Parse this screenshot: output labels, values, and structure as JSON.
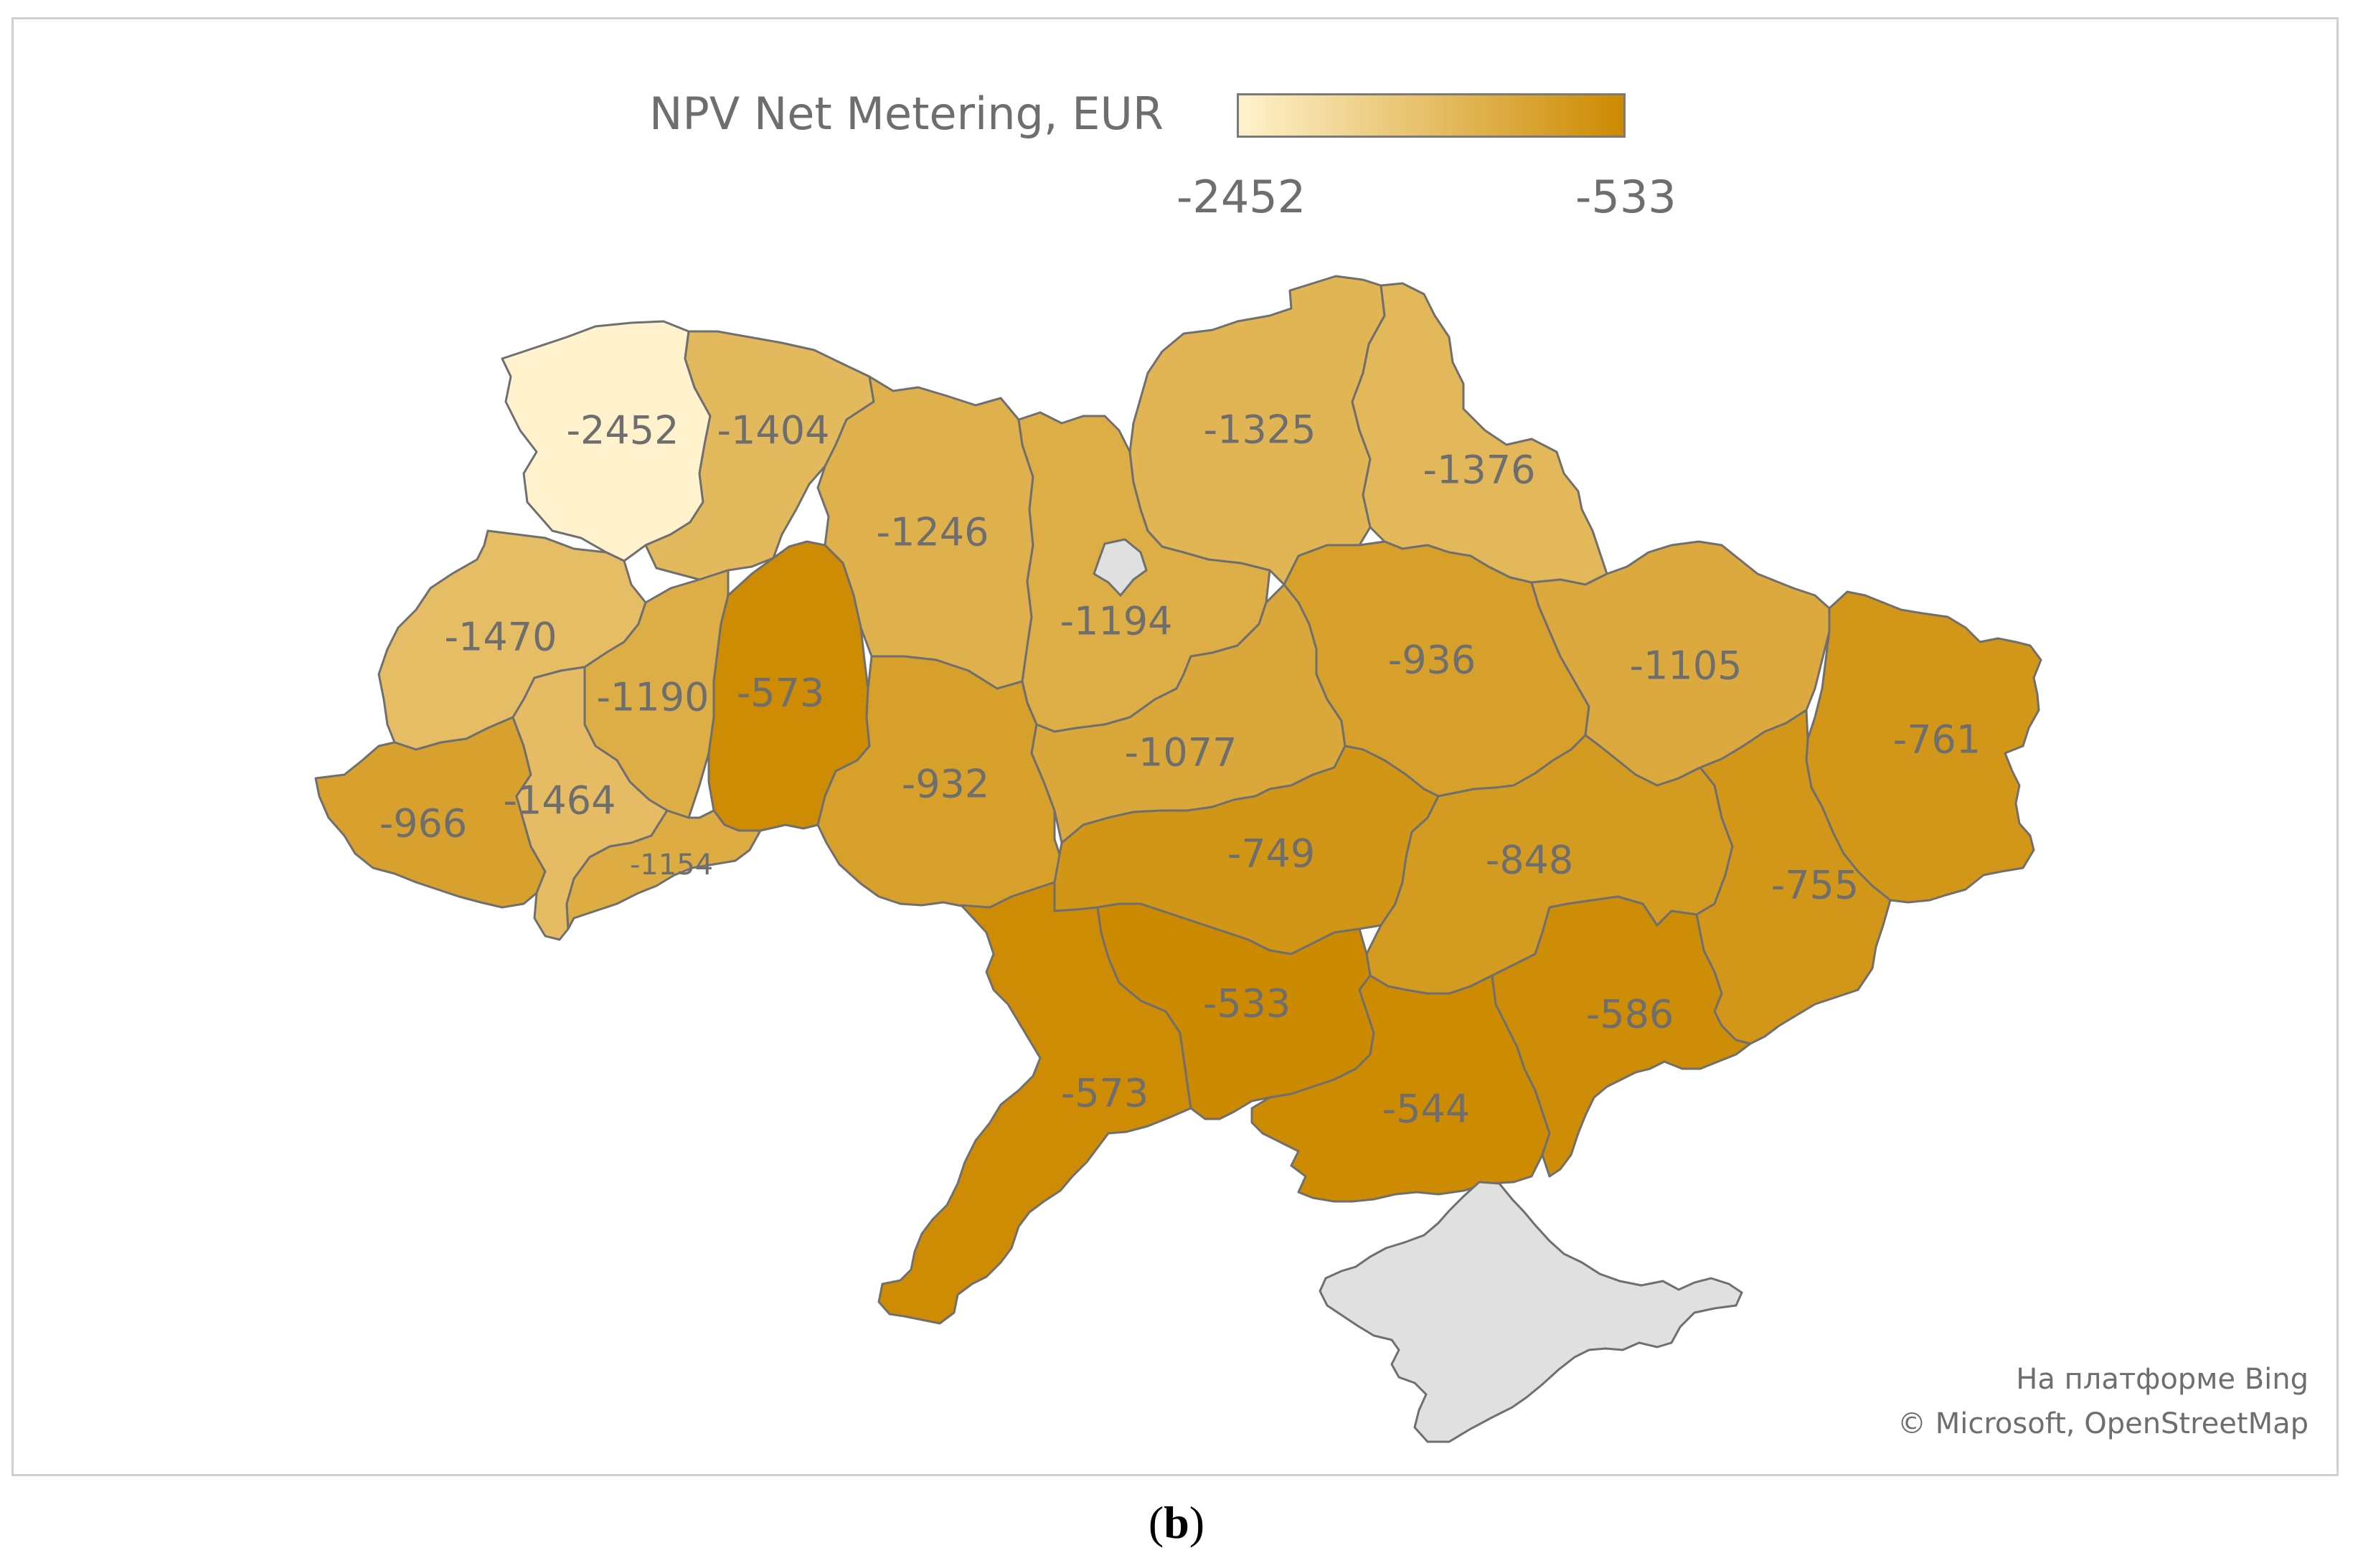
{
  "legend": {
    "title": "NPV Net Metering, EUR",
    "min_label": "-2452",
    "max_label": "-533",
    "min_value": -2452,
    "max_value": -533,
    "color_low": "#fff2cc",
    "color_high": "#cc8a00"
  },
  "regions": [
    {
      "id": "volyn",
      "label": "-2452",
      "value": -2452
    },
    {
      "id": "rivne",
      "label": "-1404",
      "value": -1404
    },
    {
      "id": "zhytomyr",
      "label": "-1246",
      "value": -1246
    },
    {
      "id": "kyiv",
      "label": "-1194",
      "value": -1194
    },
    {
      "id": "chernihiv",
      "label": "-1325",
      "value": -1325
    },
    {
      "id": "sumy",
      "label": "-1376",
      "value": -1376
    },
    {
      "id": "lviv",
      "label": "-1470",
      "value": -1470
    },
    {
      "id": "ternopil",
      "label": "-1190",
      "value": -1190
    },
    {
      "id": "khmelnytskyi",
      "label": "-573",
      "value": -573
    },
    {
      "id": "vinnytsia",
      "label": "-932",
      "value": -932
    },
    {
      "id": "cherkasy",
      "label": "-1077",
      "value": -1077
    },
    {
      "id": "poltava",
      "label": "-936",
      "value": -936
    },
    {
      "id": "kharkiv",
      "label": "-1105",
      "value": -1105
    },
    {
      "id": "luhansk",
      "label": "-761",
      "value": -761
    },
    {
      "id": "zakarpattia",
      "label": "-966",
      "value": -966
    },
    {
      "id": "ivano-frankivsk",
      "label": "-1464",
      "value": -1464
    },
    {
      "id": "chernivtsi",
      "label": "-1154",
      "value": -1154
    },
    {
      "id": "kirovohrad",
      "label": "-749",
      "value": -749
    },
    {
      "id": "dnipropetrovsk",
      "label": "-848",
      "value": -848
    },
    {
      "id": "donetsk",
      "label": "-755",
      "value": -755
    },
    {
      "id": "odesa",
      "label": "-573",
      "value": -573
    },
    {
      "id": "mykolaiv",
      "label": "-533",
      "value": -533
    },
    {
      "id": "kherson",
      "label": "-544",
      "value": -544
    },
    {
      "id": "zaporizhzhia",
      "label": "-586",
      "value": -586
    }
  ],
  "credits": {
    "line1": "На платформе Bing",
    "line2": "© Microsoft, OpenStreetMap"
  },
  "caption": {
    "open": "(",
    "letter": "b",
    "close": ")"
  }
}
